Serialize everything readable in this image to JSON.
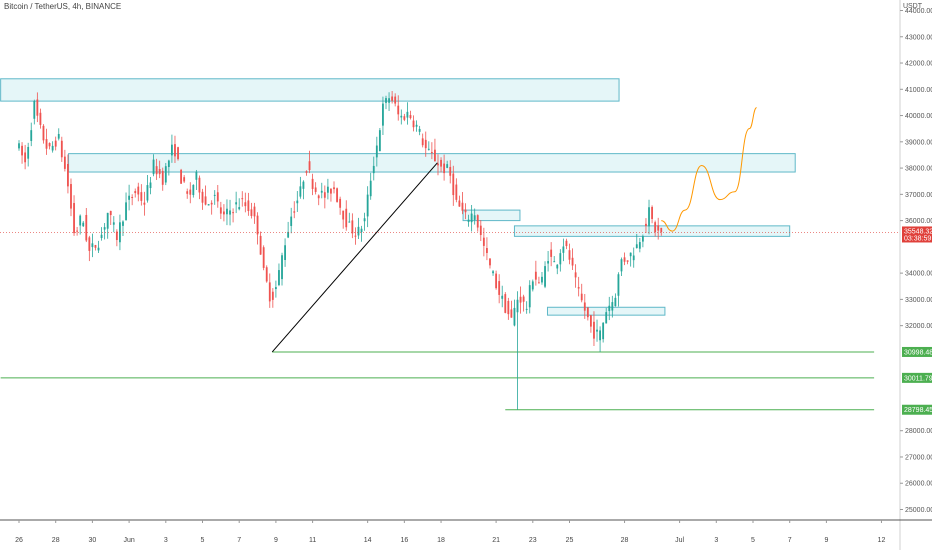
{
  "header": {
    "symbol_line": "Bitcoin / TetherUS, 4h, BINANCE",
    "currency": "USDT"
  },
  "price_tags": {
    "current": "35548.32",
    "countdown": "03:38:59",
    "levels": [
      "30998.48",
      "30011.79",
      "28798.45"
    ]
  },
  "colors": {
    "up": "#26a69a",
    "down": "#ef5350",
    "zone_fill": "#e0f4f7",
    "zone_border": "#5fb8c8",
    "level": "#4caf50",
    "trendline": "#000000",
    "projection": "#ff9800",
    "current_tag": "#e0403a"
  },
  "chart_data": {
    "type": "candlestick",
    "timeframe": "4h",
    "ylim": [
      24600,
      44400
    ],
    "yticks": [
      {
        "v": 44000,
        "label": "44000.00"
      },
      {
        "v": 43000,
        "label": "43000.00"
      },
      {
        "v": 42000,
        "label": "42000.00"
      },
      {
        "v": 41000,
        "label": "41000.00"
      },
      {
        "v": 40000,
        "label": "40000.00"
      },
      {
        "v": 39000,
        "label": "39000.00"
      },
      {
        "v": 38000,
        "label": "38000.00"
      },
      {
        "v": 37000,
        "label": "37000.00"
      },
      {
        "v": 36000,
        "label": "36000.00"
      },
      {
        "v": 34000,
        "label": "34000.00"
      },
      {
        "v": 33000,
        "label": "33000.00"
      },
      {
        "v": 32000,
        "label": "32000.00"
      },
      {
        "v": 28000,
        "label": "28000.00"
      },
      {
        "v": 27000,
        "label": "27000.00"
      },
      {
        "v": 26000,
        "label": "26000.00"
      },
      {
        "v": 25000,
        "label": "25000.00"
      }
    ],
    "xticks": [
      {
        "day": 0,
        "label": "26"
      },
      {
        "day": 2,
        "label": "28"
      },
      {
        "day": 4,
        "label": "30"
      },
      {
        "day": 6,
        "label": "Jun"
      },
      {
        "day": 8,
        "label": "3"
      },
      {
        "day": 10,
        "label": "5"
      },
      {
        "day": 12,
        "label": "7"
      },
      {
        "day": 14,
        "label": "9"
      },
      {
        "day": 16,
        "label": "11"
      },
      {
        "day": 19,
        "label": "14"
      },
      {
        "day": 21,
        "label": "16"
      },
      {
        "day": 23,
        "label": "18"
      },
      {
        "day": 26,
        "label": "21"
      },
      {
        "day": 28,
        "label": "23"
      },
      {
        "day": 30,
        "label": "25"
      },
      {
        "day": 33,
        "label": "28"
      },
      {
        "day": 36,
        "label": "Jul"
      },
      {
        "day": 38,
        "label": "3"
      },
      {
        "day": 40,
        "label": "5"
      },
      {
        "day": 42,
        "label": "7"
      },
      {
        "day": 44,
        "label": "9"
      },
      {
        "day": 47,
        "label": "12"
      }
    ],
    "price_path": [
      [
        0,
        39000
      ],
      [
        0.5,
        38200
      ],
      [
        1.0,
        40400
      ],
      [
        1.3,
        39500
      ],
      [
        1.8,
        38600
      ],
      [
        2.3,
        39200
      ],
      [
        2.8,
        37500
      ],
      [
        3.2,
        35400
      ],
      [
        3.6,
        36200
      ],
      [
        4.0,
        34800
      ],
      [
        4.6,
        35300
      ],
      [
        5.0,
        36300
      ],
      [
        5.5,
        35400
      ],
      [
        6.0,
        36600
      ],
      [
        6.5,
        37100
      ],
      [
        7.0,
        36700
      ],
      [
        7.5,
        38100
      ],
      [
        8.0,
        37600
      ],
      [
        8.6,
        38900
      ],
      [
        9.0,
        37600
      ],
      [
        9.4,
        36800
      ],
      [
        9.8,
        37700
      ],
      [
        10.3,
        36600
      ],
      [
        10.8,
        36900
      ],
      [
        11.3,
        36100
      ],
      [
        11.8,
        36500
      ],
      [
        12.3,
        36700
      ],
      [
        12.8,
        36400
      ],
      [
        13.2,
        35600
      ],
      [
        13.5,
        34000
      ],
      [
        13.9,
        33000
      ],
      [
        14.2,
        33500
      ],
      [
        14.6,
        35000
      ],
      [
        15.0,
        36200
      ],
      [
        15.5,
        37100
      ],
      [
        15.8,
        38100
      ],
      [
        16.3,
        37200
      ],
      [
        16.8,
        36900
      ],
      [
        17.3,
        37300
      ],
      [
        17.7,
        36500
      ],
      [
        18.1,
        35800
      ],
      [
        18.6,
        35500
      ],
      [
        19.0,
        36000
      ],
      [
        19.3,
        37500
      ],
      [
        19.7,
        39000
      ],
      [
        20.0,
        40300
      ],
      [
        20.4,
        40800
      ],
      [
        20.9,
        39900
      ],
      [
        21.4,
        40100
      ],
      [
        21.9,
        39500
      ],
      [
        22.4,
        38600
      ],
      [
        22.8,
        38400
      ],
      [
        23.2,
        38000
      ],
      [
        23.6,
        37900
      ],
      [
        24.0,
        36700
      ],
      [
        24.5,
        36100
      ],
      [
        25.0,
        36300
      ],
      [
        25.4,
        35200
      ],
      [
        25.8,
        34300
      ],
      [
        26.2,
        33500
      ],
      [
        26.6,
        32800
      ],
      [
        27.0,
        32200
      ],
      [
        27.4,
        33200
      ],
      [
        27.8,
        32600
      ],
      [
        28.2,
        34000
      ],
      [
        28.6,
        33500
      ],
      [
        29.0,
        34700
      ],
      [
        29.4,
        34300
      ],
      [
        29.8,
        35200
      ],
      [
        30.2,
        34500
      ],
      [
        30.6,
        33300
      ],
      [
        31.0,
        32600
      ],
      [
        31.4,
        31800
      ],
      [
        31.8,
        31600
      ],
      [
        32.2,
        32700
      ],
      [
        32.6,
        33000
      ],
      [
        33.0,
        34500
      ],
      [
        33.4,
        34600
      ],
      [
        33.8,
        35000
      ],
      [
        34.2,
        35700
      ],
      [
        34.5,
        36300
      ],
      [
        34.8,
        35700
      ],
      [
        35.0,
        35548.32
      ]
    ],
    "zones": [
      {
        "x0": -1,
        "x1": 32.7,
        "y0": 40550,
        "y1": 41400
      },
      {
        "x0": 2.7,
        "x1": 42.3,
        "y0": 37850,
        "y1": 38550
      },
      {
        "x0": 24.2,
        "x1": 27.3,
        "y0": 36000,
        "y1": 36400
      },
      {
        "x0": 27.0,
        "x1": 42.0,
        "y0": 35400,
        "y1": 35800
      },
      {
        "x0": 28.8,
        "x1": 35.2,
        "y0": 32400,
        "y1": 32700
      }
    ],
    "levels": [
      {
        "price": 30998.48,
        "x0": 13.8,
        "x1": 46.6
      },
      {
        "price": 30011.79,
        "x0": -1,
        "x1": 46.6
      },
      {
        "price": 28798.45,
        "x0": 26.5,
        "x1": 46.6
      }
    ],
    "trendline": [
      [
        13.8,
        30998.48
      ],
      [
        22.8,
        38200
      ]
    ],
    "projection": [
      [
        35.0,
        36000
      ],
      [
        35.6,
        35600
      ],
      [
        36.3,
        36400
      ],
      [
        37.2,
        38100
      ],
      [
        38.2,
        36800
      ],
      [
        39.0,
        37100
      ],
      [
        39.8,
        39500
      ],
      [
        40.2,
        40300
      ]
    ]
  }
}
